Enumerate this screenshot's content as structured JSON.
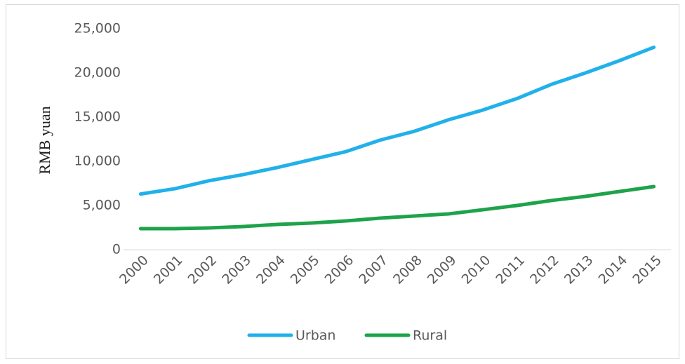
{
  "chart_data": {
    "type": "line",
    "y_label": "RMB yuan",
    "categories": [
      "2000",
      "2001",
      "2002",
      "2003",
      "2004",
      "2005",
      "2006",
      "2007",
      "2008",
      "2009",
      "2010",
      "2011",
      "2012",
      "2013",
      "2014",
      "2015"
    ],
    "series": [
      {
        "name": "Urban",
        "color": "#21b1ea",
        "values": [
          6300,
          6900,
          7800,
          8500,
          9300,
          10200,
          11100,
          12400,
          13400,
          14700,
          15800,
          17100,
          18700,
          20000,
          21400,
          22900
        ]
      },
      {
        "name": "Rural",
        "color": "#1ea34b",
        "values": [
          2380,
          2380,
          2460,
          2620,
          2860,
          3020,
          3250,
          3570,
          3810,
          4050,
          4520,
          5000,
          5560,
          6030,
          6590,
          7140
        ]
      }
    ],
    "ylim": [
      0,
      25000
    ],
    "yticks": [
      {
        "value": 0,
        "label": "0"
      },
      {
        "value": 5000,
        "label": "5,000"
      },
      {
        "value": 10000,
        "label": "10,000"
      },
      {
        "value": 15000,
        "label": "15,000"
      },
      {
        "value": 20000,
        "label": "20,000"
      },
      {
        "value": 25000,
        "label": "25,000"
      }
    ],
    "legend": "bottom"
  }
}
